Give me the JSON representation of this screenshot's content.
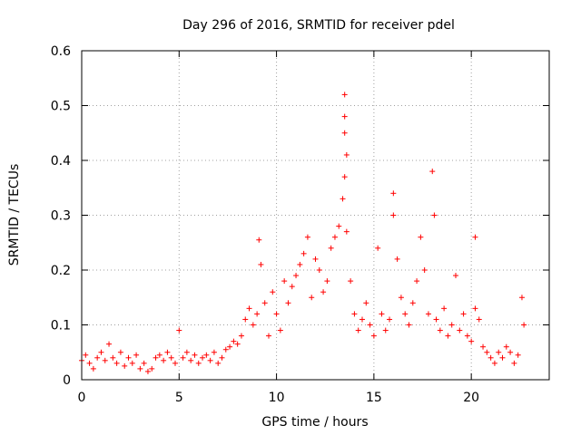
{
  "chart_data": {
    "type": "scatter",
    "title": "Day 296 of 2016, SRMTID for receiver pdel",
    "xlabel": "GPS time / hours",
    "ylabel": "SRMTID / TECUs",
    "xlim": [
      0,
      24
    ],
    "ylim": [
      0,
      0.6
    ],
    "xticks": [
      0,
      5,
      10,
      15,
      20
    ],
    "xtick_labels": [
      "0",
      "5",
      "10",
      "15",
      "20"
    ],
    "yticks": [
      0,
      0.1,
      0.2,
      0.3,
      0.4,
      0.5,
      0.6
    ],
    "ytick_labels": [
      "0",
      "0.1",
      "0.2",
      "0.3",
      "0.4",
      "0.5",
      "0.6"
    ],
    "grid": true,
    "marker": "+",
    "color": "#ff0000",
    "series": [
      {
        "name": "SRMTID",
        "x": [
          0.0,
          0.2,
          0.4,
          0.6,
          0.8,
          1.0,
          1.2,
          1.4,
          1.6,
          1.8,
          2.0,
          2.2,
          2.4,
          2.6,
          2.8,
          3.0,
          3.2,
          3.4,
          3.6,
          3.8,
          4.0,
          4.2,
          4.4,
          4.6,
          4.8,
          5.0,
          5.2,
          5.4,
          5.6,
          5.8,
          6.0,
          6.2,
          6.4,
          6.6,
          6.8,
          7.0,
          7.2,
          7.4,
          7.6,
          7.8,
          8.0,
          8.2,
          8.4,
          8.6,
          8.8,
          9.0,
          9.1,
          9.2,
          9.4,
          9.6,
          9.8,
          10.0,
          10.2,
          10.4,
          10.6,
          10.8,
          11.0,
          11.2,
          11.4,
          11.6,
          11.8,
          12.0,
          12.2,
          12.4,
          12.6,
          12.8,
          13.0,
          13.2,
          13.4,
          13.5,
          13.5,
          13.5,
          13.5,
          13.6,
          13.6,
          13.8,
          14.0,
          14.2,
          14.4,
          14.6,
          14.8,
          15.0,
          15.2,
          15.4,
          15.6,
          15.8,
          16.0,
          16.0,
          16.2,
          16.4,
          16.6,
          16.8,
          17.0,
          17.2,
          17.4,
          17.6,
          17.8,
          18.0,
          18.1,
          18.2,
          18.4,
          18.6,
          18.8,
          19.0,
          19.2,
          19.4,
          19.6,
          19.8,
          20.0,
          20.2,
          20.2,
          20.4,
          20.6,
          20.8,
          21.0,
          21.2,
          21.4,
          21.6,
          21.8,
          22.0,
          22.2,
          22.4,
          22.6,
          22.7
        ],
        "y": [
          0.035,
          0.045,
          0.03,
          0.02,
          0.04,
          0.05,
          0.035,
          0.065,
          0.04,
          0.03,
          0.05,
          0.025,
          0.04,
          0.03,
          0.045,
          0.02,
          0.03,
          0.015,
          0.02,
          0.04,
          0.045,
          0.035,
          0.05,
          0.04,
          0.03,
          0.09,
          0.04,
          0.05,
          0.035,
          0.045,
          0.03,
          0.04,
          0.045,
          0.035,
          0.05,
          0.03,
          0.04,
          0.055,
          0.06,
          0.07,
          0.065,
          0.08,
          0.11,
          0.13,
          0.1,
          0.12,
          0.255,
          0.21,
          0.14,
          0.08,
          0.16,
          0.12,
          0.09,
          0.18,
          0.14,
          0.17,
          0.19,
          0.21,
          0.23,
          0.26,
          0.15,
          0.22,
          0.2,
          0.16,
          0.18,
          0.24,
          0.26,
          0.28,
          0.33,
          0.52,
          0.48,
          0.45,
          0.37,
          0.41,
          0.27,
          0.18,
          0.12,
          0.09,
          0.11,
          0.14,
          0.1,
          0.08,
          0.24,
          0.12,
          0.09,
          0.11,
          0.34,
          0.3,
          0.22,
          0.15,
          0.12,
          0.1,
          0.14,
          0.18,
          0.26,
          0.2,
          0.12,
          0.38,
          0.3,
          0.11,
          0.09,
          0.13,
          0.08,
          0.1,
          0.19,
          0.09,
          0.12,
          0.08,
          0.07,
          0.26,
          0.13,
          0.11,
          0.06,
          0.05,
          0.04,
          0.03,
          0.05,
          0.04,
          0.06,
          0.05,
          0.03,
          0.045,
          0.15,
          0.1
        ]
      }
    ]
  }
}
